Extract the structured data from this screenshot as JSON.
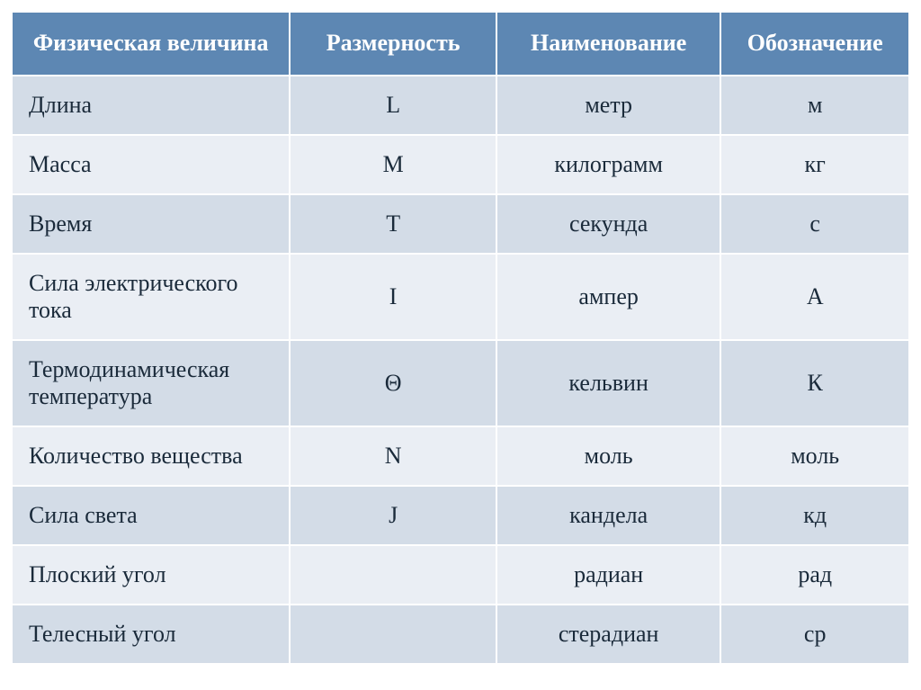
{
  "headers": {
    "col1": "Физическая величина",
    "col2": "Размерность",
    "col3": "Наименование",
    "col4": "Обозначение"
  },
  "rows": [
    {
      "quantity": "Длина",
      "dimension": "L",
      "name": "метр",
      "symbol": "м"
    },
    {
      "quantity": "Масса",
      "dimension": "M",
      "name": "килограмм",
      "symbol": "кг"
    },
    {
      "quantity": "Время",
      "dimension": "T",
      "name": "секунда",
      "symbol": "с"
    },
    {
      "quantity": "Сила электрического тока",
      "dimension": "I",
      "name": "ампер",
      "symbol": "А"
    },
    {
      "quantity": "Термодинамическая температура",
      "dimension": "Θ",
      "name": "кельвин",
      "symbol": "К"
    },
    {
      "quantity": "Количество вещества",
      "dimension": "N",
      "name": "моль",
      "symbol": "моль"
    },
    {
      "quantity": "Сила света",
      "dimension": "J",
      "name": "кандела",
      "symbol": "кд"
    },
    {
      "quantity": "Плоский угол",
      "dimension": "",
      "name": "радиан",
      "symbol": "рад"
    },
    {
      "quantity": "Телесный угол",
      "dimension": "",
      "name": "стерадиан",
      "symbol": "ср"
    }
  ],
  "colors": {
    "header_bg": "#5d87b3",
    "header_text": "#ffffff",
    "row_a_bg": "#d3dce7",
    "row_b_bg": "#eaeef4",
    "cell_text": "#1a2a3a",
    "border": "#ffffff"
  }
}
